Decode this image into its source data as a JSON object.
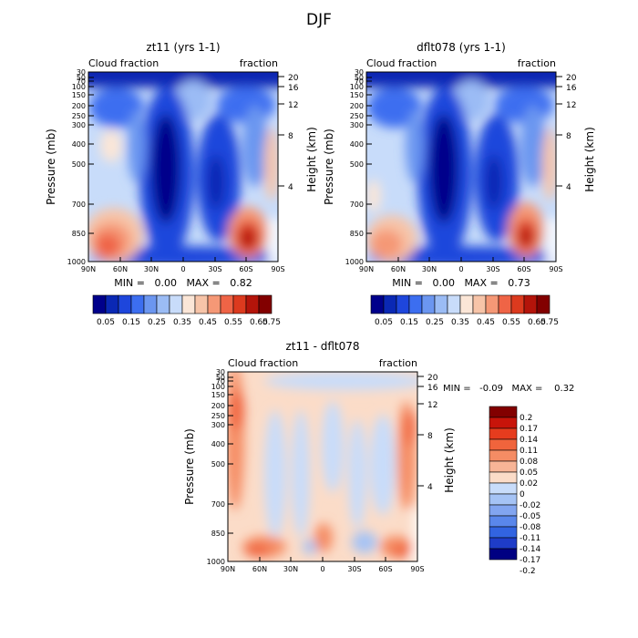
{
  "figure": {
    "season": "DJF",
    "y_axis_label": "Pressure (mb)",
    "right_axis_label": "Height (km)",
    "variable_label": "Cloud fraction",
    "units_label": "fraction",
    "pressure_ticks": [
      "30",
      "50",
      "70",
      "100",
      "150",
      "200",
      "250",
      "300",
      "400",
      "500",
      "700",
      "850",
      "1000"
    ],
    "height_ticks": [
      "20",
      "16",
      "12",
      "8",
      "4"
    ],
    "lat_ticks": [
      "90N",
      "60N",
      "30N",
      "0",
      "30S",
      "60S",
      "90S"
    ]
  },
  "panels": [
    {
      "title": "zt11 (yrs 1-1)",
      "stats_line": "MIN =   0.00   MAX =   0.82",
      "colorbar_labels": [
        "0.05",
        "0.15",
        "0.25",
        "0.35",
        "0.45",
        "0.55",
        "0.65",
        "0.75"
      ]
    },
    {
      "title": "dflt078 (yrs 1-1)",
      "stats_line": "MIN =   0.00   MAX =   0.73",
      "colorbar_labels": [
        "0.05",
        "0.15",
        "0.25",
        "0.35",
        "0.45",
        "0.55",
        "0.65",
        "0.75"
      ]
    },
    {
      "title": "zt11 - dflt078",
      "stats_line": "MIN =   -0.09   MAX =    0.32",
      "colorbar_labels": [
        "0.2",
        "0.17",
        "0.14",
        "0.11",
        "0.08",
        "0.05",
        "0.02",
        "0",
        "-0.02",
        "-0.05",
        "-0.08",
        "-0.11",
        "-0.14",
        "-0.17",
        "-0.2"
      ]
    }
  ],
  "colors": {
    "abs_scale": [
      "#00008b",
      "#0a28b4",
      "#1e46dc",
      "#3c6ef0",
      "#6b96f0",
      "#9bbcf5",
      "#c8dcfa",
      "#fbe6d7",
      "#f7c4a8",
      "#f59876",
      "#ef6446",
      "#dc3a1e",
      "#b4140a",
      "#820000"
    ],
    "diff_scale": [
      "#820000",
      "#c8140a",
      "#e63c1e",
      "#f0643c",
      "#f58c64",
      "#f7b496",
      "#fbdcc8",
      "#c8dcfa",
      "#a5c3f5",
      "#82a5f0",
      "#5a87eb",
      "#3264e1",
      "#1e3cc8",
      "#0a14a0",
      "#000082"
    ]
  },
  "chart_data": [
    {
      "type": "heatmap",
      "title": "zt11 (yrs 1-1)",
      "ylabel": "Pressure (mb)",
      "y2label": "Height (km)",
      "variable": "Cloud fraction",
      "units": "fraction",
      "x": [
        "90N",
        "60N",
        "30N",
        "0",
        "30S",
        "60S",
        "90S"
      ],
      "ylim": [
        1000,
        30
      ],
      "min": 0.0,
      "max": 0.82,
      "contour_levels": [
        0.05,
        0.1,
        0.15,
        0.2,
        0.25,
        0.3,
        0.35,
        0.4,
        0.45,
        0.5,
        0.55,
        0.6,
        0.65,
        0.7,
        0.75
      ]
    },
    {
      "type": "heatmap",
      "title": "dflt078 (yrs 1-1)",
      "ylabel": "Pressure (mb)",
      "y2label": "Height (km)",
      "variable": "Cloud fraction",
      "units": "fraction",
      "x": [
        "90N",
        "60N",
        "30N",
        "0",
        "30S",
        "60S",
        "90S"
      ],
      "ylim": [
        1000,
        30
      ],
      "min": 0.0,
      "max": 0.73,
      "contour_levels": [
        0.05,
        0.1,
        0.15,
        0.2,
        0.25,
        0.3,
        0.35,
        0.4,
        0.45,
        0.5,
        0.55,
        0.6,
        0.65,
        0.7,
        0.75
      ]
    },
    {
      "type": "heatmap",
      "title": "zt11 - dflt078",
      "ylabel": "Pressure (mb)",
      "y2label": "Height (km)",
      "variable": "Cloud fraction",
      "units": "fraction",
      "x": [
        "90N",
        "60N",
        "30N",
        "0",
        "30S",
        "60S",
        "90S"
      ],
      "ylim": [
        1000,
        30
      ],
      "min": -0.09,
      "max": 0.32,
      "contour_levels": [
        -0.2,
        -0.17,
        -0.14,
        -0.11,
        -0.08,
        -0.05,
        -0.02,
        0,
        0.02,
        0.05,
        0.08,
        0.11,
        0.14,
        0.17,
        0.2
      ]
    }
  ]
}
